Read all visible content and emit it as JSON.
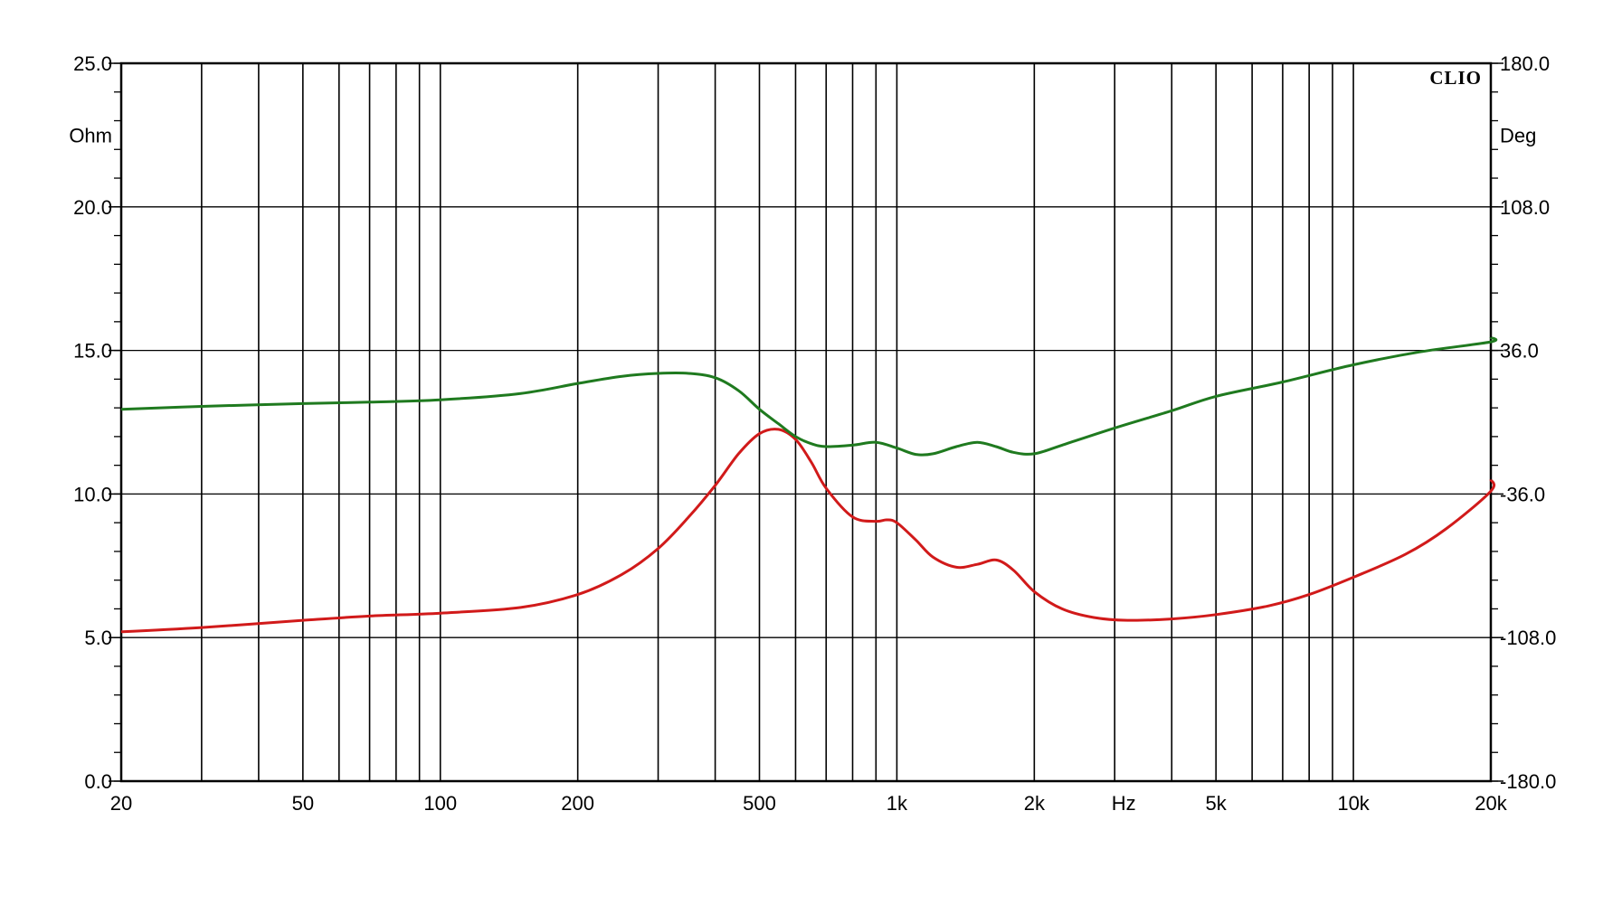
{
  "chart_data": {
    "type": "line",
    "brand": "CLIO",
    "x_scale": "log",
    "xlim": [
      20,
      20000
    ],
    "ylim_left": [
      0,
      25
    ],
    "ylim_right": [
      -180,
      180
    ],
    "y_left_unit": "Ohm",
    "y_right_unit": "Deg",
    "x_unit": "Hz",
    "grid": true,
    "x_ticks": [
      {
        "value": 20,
        "label": "20"
      },
      {
        "value": 50,
        "label": "50"
      },
      {
        "value": 100,
        "label": "100"
      },
      {
        "value": 200,
        "label": "200"
      },
      {
        "value": 500,
        "label": "500"
      },
      {
        "value": 1000,
        "label": "1k"
      },
      {
        "value": 2000,
        "label": "2k"
      },
      {
        "value": 5000,
        "label": "5k"
      },
      {
        "value": 10000,
        "label": "10k"
      },
      {
        "value": 20000,
        "label": "20k"
      }
    ],
    "x_unit_position": 3000,
    "x_gridlines": [
      20,
      30,
      40,
      50,
      60,
      70,
      80,
      90,
      100,
      200,
      300,
      400,
      500,
      600,
      700,
      800,
      900,
      1000,
      2000,
      3000,
      4000,
      5000,
      6000,
      7000,
      8000,
      9000,
      10000,
      20000
    ],
    "y_left_ticks": [
      {
        "value": 0,
        "label": "0.0"
      },
      {
        "value": 5,
        "label": "5.0"
      },
      {
        "value": 10,
        "label": "10.0"
      },
      {
        "value": 15,
        "label": "15.0"
      },
      {
        "value": 20,
        "label": "20.0"
      },
      {
        "value": 25,
        "label": "25.0"
      }
    ],
    "y_right_ticks": [
      {
        "value": -180,
        "label": "-180.0"
      },
      {
        "value": -108,
        "label": "-108.0"
      },
      {
        "value": -36,
        "label": "-36.0"
      },
      {
        "value": 36,
        "label": "36.0"
      },
      {
        "value": 108,
        "label": "108.0"
      },
      {
        "value": 180,
        "label": "180.0"
      }
    ],
    "y_unit_value_left": 22.5,
    "series": [
      {
        "axis": "left",
        "color": "#d11a1a",
        "points": [
          [
            20,
            5.2
          ],
          [
            30,
            5.35
          ],
          [
            50,
            5.6
          ],
          [
            70,
            5.75
          ],
          [
            100,
            5.85
          ],
          [
            150,
            6.05
          ],
          [
            200,
            6.5
          ],
          [
            250,
            7.2
          ],
          [
            300,
            8.1
          ],
          [
            350,
            9.2
          ],
          [
            400,
            10.3
          ],
          [
            450,
            11.4
          ],
          [
            500,
            12.1
          ],
          [
            550,
            12.25
          ],
          [
            600,
            11.9
          ],
          [
            650,
            11.1
          ],
          [
            700,
            10.2
          ],
          [
            800,
            9.2
          ],
          [
            900,
            9.05
          ],
          [
            950,
            9.1
          ],
          [
            1000,
            9.0
          ],
          [
            1100,
            8.4
          ],
          [
            1200,
            7.8
          ],
          [
            1350,
            7.45
          ],
          [
            1500,
            7.55
          ],
          [
            1650,
            7.7
          ],
          [
            1800,
            7.35
          ],
          [
            2000,
            6.6
          ],
          [
            2300,
            6.0
          ],
          [
            2700,
            5.7
          ],
          [
            3200,
            5.6
          ],
          [
            4000,
            5.65
          ],
          [
            5000,
            5.8
          ],
          [
            6500,
            6.1
          ],
          [
            8000,
            6.5
          ],
          [
            10000,
            7.1
          ],
          [
            13000,
            7.9
          ],
          [
            16000,
            8.8
          ],
          [
            20000,
            10.1
          ],
          [
            21000,
            10.5
          ]
        ]
      },
      {
        "axis": "left",
        "color": "#1f7a1f",
        "points": [
          [
            20,
            12.95
          ],
          [
            30,
            13.05
          ],
          [
            50,
            13.15
          ],
          [
            70,
            13.2
          ],
          [
            100,
            13.28
          ],
          [
            150,
            13.5
          ],
          [
            200,
            13.85
          ],
          [
            250,
            14.1
          ],
          [
            300,
            14.2
          ],
          [
            350,
            14.2
          ],
          [
            400,
            14.05
          ],
          [
            450,
            13.6
          ],
          [
            500,
            12.95
          ],
          [
            550,
            12.45
          ],
          [
            600,
            12.0
          ],
          [
            650,
            11.75
          ],
          [
            700,
            11.65
          ],
          [
            800,
            11.7
          ],
          [
            900,
            11.8
          ],
          [
            1000,
            11.6
          ],
          [
            1100,
            11.38
          ],
          [
            1200,
            11.4
          ],
          [
            1350,
            11.65
          ],
          [
            1500,
            11.8
          ],
          [
            1650,
            11.65
          ],
          [
            1800,
            11.45
          ],
          [
            2000,
            11.4
          ],
          [
            2300,
            11.7
          ],
          [
            3000,
            12.3
          ],
          [
            4000,
            12.9
          ],
          [
            5000,
            13.4
          ],
          [
            7000,
            13.9
          ],
          [
            10000,
            14.5
          ],
          [
            14000,
            14.95
          ],
          [
            20000,
            15.3
          ],
          [
            21000,
            15.45
          ]
        ]
      }
    ]
  }
}
